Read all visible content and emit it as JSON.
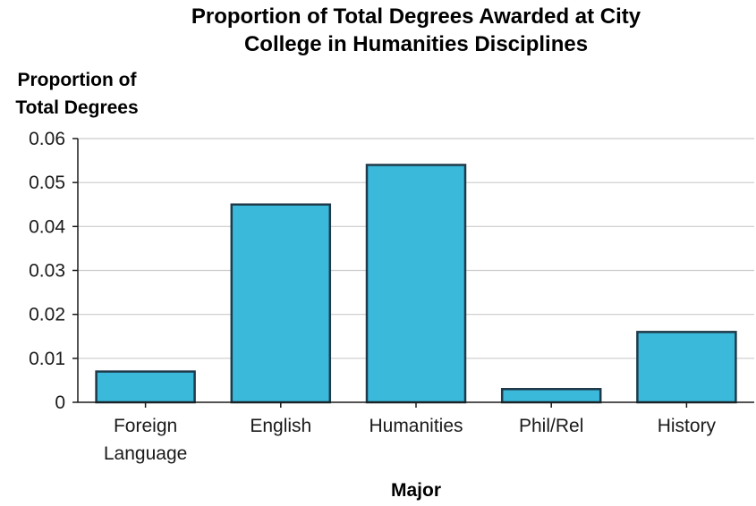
{
  "chart_data": {
    "type": "bar",
    "title_lines": [
      "Proportion of Total Degrees Awarded at City",
      "College in Humanities Disciplines"
    ],
    "ylabel_lines": [
      "Proportion of",
      "Total Degrees"
    ],
    "xlabel": "Major",
    "categories": [
      [
        "Foreign",
        "Language"
      ],
      [
        "English"
      ],
      [
        "Humanities"
      ],
      [
        "Phil/Rel"
      ],
      [
        "History"
      ]
    ],
    "values": [
      0.007,
      0.045,
      0.054,
      0.003,
      0.016
    ],
    "ylim": [
      0,
      0.06
    ],
    "yticks": [
      "0",
      "0.01",
      "0.02",
      "0.03",
      "0.04",
      "0.05",
      "0.06"
    ],
    "grid": true,
    "bar_color": "#3bb9db",
    "bar_edge_color": "#1f3a4a"
  }
}
